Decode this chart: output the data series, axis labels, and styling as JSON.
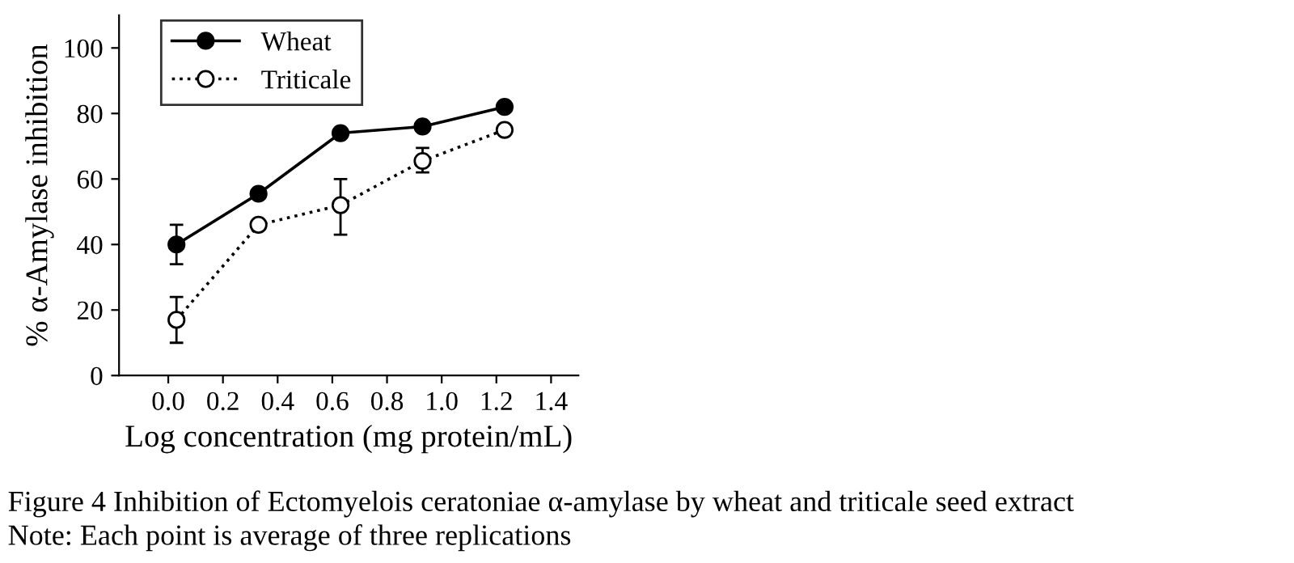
{
  "chart_data": {
    "type": "line",
    "xlabel": "Log concentration (mg protein/mL)",
    "ylabel": "% α-Amylase inhibition",
    "x": [
      0.03,
      0.33,
      0.63,
      0.93,
      1.23
    ],
    "series": [
      {
        "name": "Wheat",
        "color": "#000000",
        "values": [
          40,
          55.5,
          74,
          76,
          82
        ],
        "errors": [
          6,
          null,
          null,
          null,
          null
        ],
        "marker": "circle",
        "line_style": "solid"
      },
      {
        "name": "Triticale",
        "color": "#000000",
        "values": [
          17,
          46,
          52,
          65.5,
          75
        ],
        "errors": [
          7,
          null,
          [
            43,
            60
          ],
          [
            62,
            69.5
          ],
          null
        ],
        "marker": "circle",
        "line_style": "dotted"
      }
    ],
    "xlim": [
      -0.18,
      1.5
    ],
    "ylim": [
      0,
      110
    ],
    "xticks": [
      {
        "value": 0,
        "label": "0.0"
      },
      0.2,
      0.4,
      0.6,
      0.8,
      {
        "value": 1,
        "label": "1.0"
      },
      1.2,
      1.4
    ],
    "yticks": [
      0,
      20,
      40,
      60,
      80,
      100
    ],
    "legend": "top left",
    "grid": false,
    "annotations": [
      "Figure 4 Inhibition of Ectomyelois ceratoniae α-amylase by wheat and triticale seed extract",
      "Note: Each point is average of three replications"
    ]
  }
}
